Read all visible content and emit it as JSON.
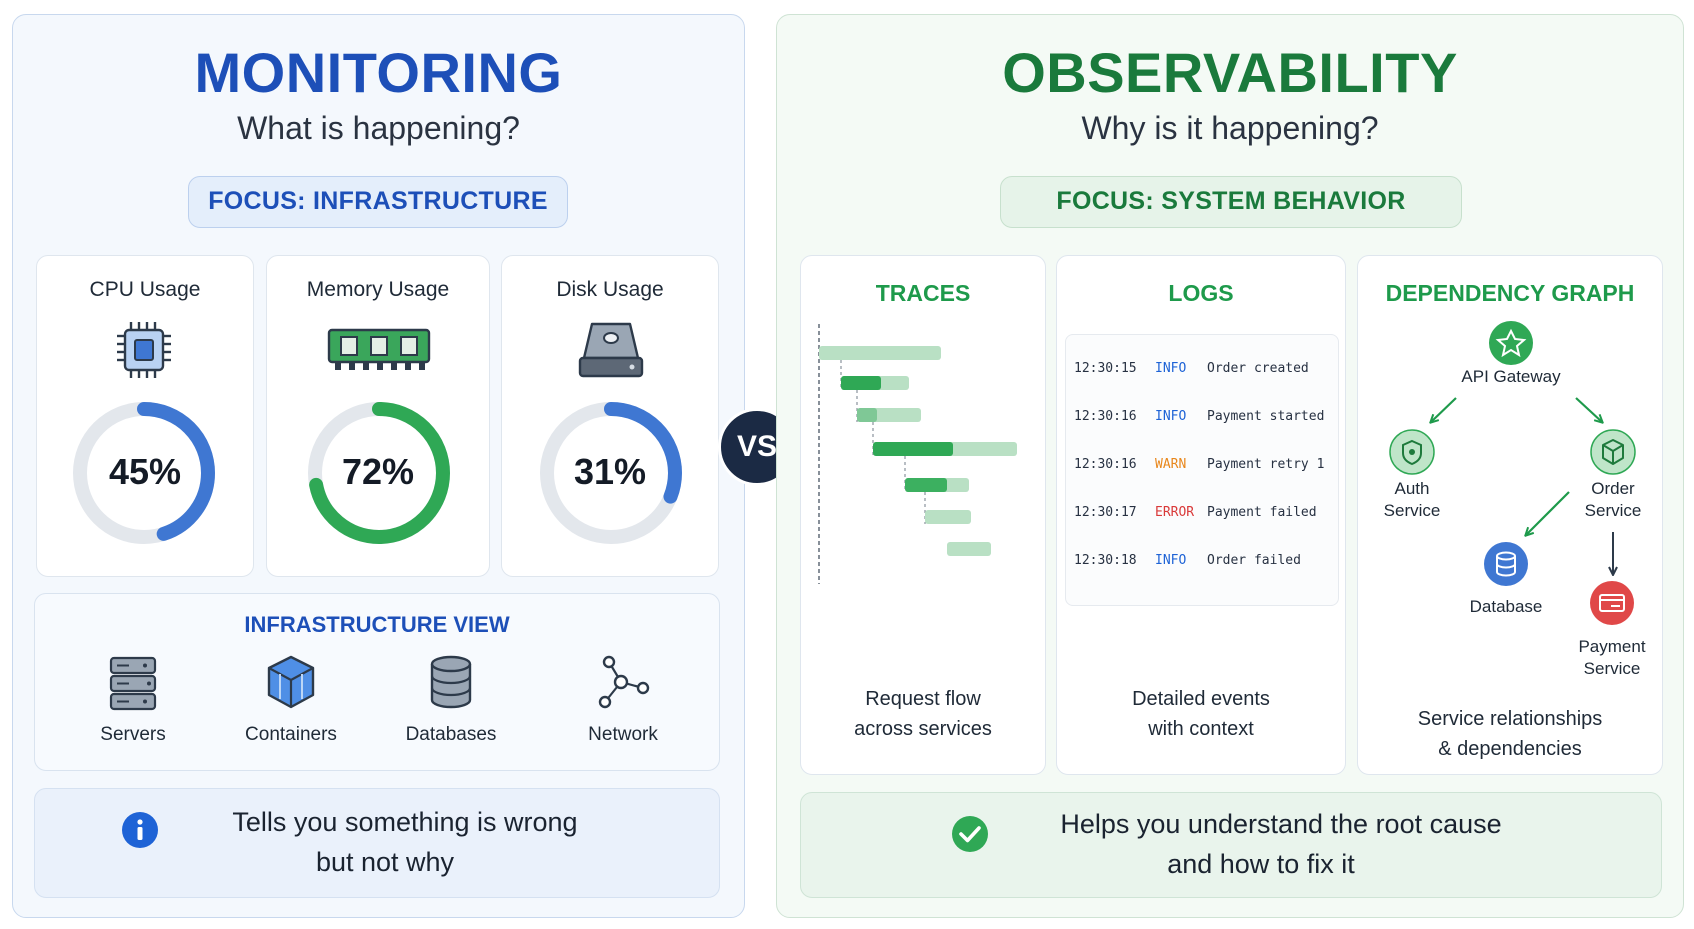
{
  "monitoring": {
    "title": "MONITORING",
    "subtitle": "What is happening?",
    "focus": "FOCUS: INFRASTRUCTURE",
    "metrics": [
      {
        "label": "CPU Usage",
        "value": 45,
        "display": "45%",
        "color": "#3f77d2",
        "icon": "cpu-chip-icon"
      },
      {
        "label": "Memory Usage",
        "value": 72,
        "display": "72%",
        "color": "#2fa855",
        "icon": "memory-ram-icon"
      },
      {
        "label": "Disk Usage",
        "value": 31,
        "display": "31%",
        "color": "#3f77d2",
        "icon": "hard-disk-icon"
      }
    ],
    "infra_view": {
      "title": "INFRASTRUCTURE VIEW",
      "items": [
        {
          "label": "Servers",
          "icon": "server-rack-icon"
        },
        {
          "label": "Containers",
          "icon": "container-cube-icon"
        },
        {
          "label": "Databases",
          "icon": "database-icon"
        },
        {
          "label": "Network",
          "icon": "network-nodes-icon"
        }
      ]
    },
    "note": {
      "line1": "Tells you something is wrong",
      "line2": "but not why",
      "icon": "info-icon"
    }
  },
  "vs_label": "VS",
  "observability": {
    "title": "OBSERVABILITY",
    "subtitle": "Why is it happening?",
    "focus": "FOCUS: SYSTEM BEHAVIOR",
    "traces": {
      "title": "TRACES",
      "caption1": "Request flow",
      "caption2": "across services"
    },
    "logs": {
      "title": "LOGS",
      "entries": [
        {
          "time": "12:30:15",
          "level": "INFO",
          "message": "Order created"
        },
        {
          "time": "12:30:16",
          "level": "INFO",
          "message": "Payment started"
        },
        {
          "time": "12:30:16",
          "level": "WARN",
          "message": "Payment retry 1"
        },
        {
          "time": "12:30:17",
          "level": "ERROR",
          "message": "Payment failed"
        },
        {
          "time": "12:30:18",
          "level": "INFO",
          "message": "Order failed"
        }
      ],
      "caption1": "Detailed events",
      "caption2": "with context"
    },
    "dependency": {
      "title": "DEPENDENCY GRAPH",
      "nodes": {
        "api": "API Gateway",
        "auth1": "Auth",
        "auth2": "Service",
        "order1": "Order",
        "order2": "Service",
        "db": "Database",
        "pay1": "Payment",
        "pay2": "Service"
      },
      "caption1": "Service relationships",
      "caption2": "& dependencies"
    },
    "note": {
      "line1": "Helps you understand the root cause",
      "line2": "and how to fix it",
      "icon": "check-circle-icon"
    }
  },
  "colors": {
    "monitoring_accent": "#1d4fb8",
    "observability_accent": "#1a7a3c",
    "info": "#1e63d6",
    "warn": "#e8871c",
    "error": "#d93a3a",
    "success": "#2fa855"
  }
}
